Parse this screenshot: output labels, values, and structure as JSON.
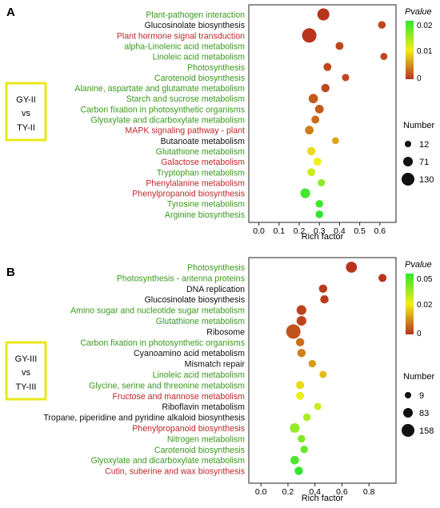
{
  "palette": {
    "green": "#3a9a1e",
    "red": "#c0282c",
    "black": "#111111",
    "box": "#e8e81a",
    "grad_low": "#b8341c",
    "grad_mid": "#f2ee1a",
    "grad_high": "#2ee62e"
  },
  "chart_data": [
    {
      "type": "scatter",
      "panel_label": "A",
      "group_label": [
        "GY-II",
        "vs",
        "TY-II"
      ],
      "xlabel": "Rich factor",
      "xlim": [
        -0.05,
        0.68
      ],
      "xticks": [
        "0.0",
        "0.1",
        "0.2",
        "0.3",
        "0.4",
        "0.5",
        "0.6"
      ],
      "color_legend": {
        "title": "Pvalue",
        "min": 0,
        "max": 0.02,
        "ticks": [
          "0.02",
          "0.01",
          "0"
        ]
      },
      "size_legend": {
        "title": "Number",
        "values": [
          "12",
          "71",
          "130"
        ]
      },
      "pathways": [
        {
          "name": "Plant-pathogen interaction",
          "label_color": "green",
          "x": 0.32,
          "n": 95,
          "p": 0.0
        },
        {
          "name": "Glucosinolate biosynthesis",
          "label_color": "black",
          "x": 0.61,
          "n": 30,
          "p": 0.001
        },
        {
          "name": "Plant hormone signal transduction",
          "label_color": "red",
          "x": 0.25,
          "n": 130,
          "p": 0.0
        },
        {
          "name": "alpha-Linolenic acid metabolism",
          "label_color": "green",
          "x": 0.4,
          "n": 35,
          "p": 0.001
        },
        {
          "name": "Linoleic acid metabolism",
          "label_color": "green",
          "x": 0.62,
          "n": 22,
          "p": 0.001
        },
        {
          "name": "Photosynthesis",
          "label_color": "green",
          "x": 0.34,
          "n": 35,
          "p": 0.001
        },
        {
          "name": "Carotenoid biosynthesis",
          "label_color": "green",
          "x": 0.43,
          "n": 25,
          "p": 0.001
        },
        {
          "name": "Alanine, aspartate and glutamate metabolism",
          "label_color": "green",
          "x": 0.33,
          "n": 40,
          "p": 0.001
        },
        {
          "name": "Starch and sucrose metabolism",
          "label_color": "green",
          "x": 0.27,
          "n": 55,
          "p": 0.002
        },
        {
          "name": "Carbon fixation in photosynthetic organisms",
          "label_color": "green",
          "x": 0.3,
          "n": 45,
          "p": 0.002
        },
        {
          "name": "Glyoxylate and dicarboxylate metabolism",
          "label_color": "green",
          "x": 0.28,
          "n": 35,
          "p": 0.003
        },
        {
          "name": "MAPK signaling pathway - plant",
          "label_color": "red",
          "x": 0.25,
          "n": 45,
          "p": 0.004
        },
        {
          "name": "Butanoate metabolism",
          "label_color": "black",
          "x": 0.38,
          "n": 20,
          "p": 0.006
        },
        {
          "name": "Glutathione metabolism",
          "label_color": "green",
          "x": 0.26,
          "n": 40,
          "p": 0.009
        },
        {
          "name": "Galactose metabolism",
          "label_color": "red",
          "x": 0.29,
          "n": 35,
          "p": 0.01
        },
        {
          "name": "Tryptophan metabolism",
          "label_color": "green",
          "x": 0.26,
          "n": 35,
          "p": 0.012
        },
        {
          "name": "Phenylalanine metabolism",
          "label_color": "red",
          "x": 0.31,
          "n": 25,
          "p": 0.015
        },
        {
          "name": "Phenylpropanoid biosynthesis",
          "label_color": "red",
          "x": 0.23,
          "n": 60,
          "p": 0.019
        },
        {
          "name": "Tyrosine metabolism",
          "label_color": "green",
          "x": 0.3,
          "n": 30,
          "p": 0.019
        },
        {
          "name": "Arginine biosynthesis",
          "label_color": "green",
          "x": 0.3,
          "n": 30,
          "p": 0.02
        }
      ]
    },
    {
      "type": "scatter",
      "panel_label": "B",
      "group_label": [
        "GY-III",
        "vs",
        "TY-III"
      ],
      "xlabel": "Rich factor",
      "xlim": [
        -0.09,
        1.0
      ],
      "xticks": [
        "0.0",
        "0.2",
        "0.4",
        "0.6",
        "0.8"
      ],
      "color_legend": {
        "title": "Pvalue",
        "min": 0,
        "max": 0.05,
        "ticks": [
          "0.05",
          "0.02",
          "0"
        ]
      },
      "size_legend": {
        "title": "Number",
        "values": [
          "9",
          "83",
          "158"
        ]
      },
      "pathways": [
        {
          "name": "Photosynthesis",
          "label_color": "green",
          "x": 0.67,
          "n": 95,
          "p": 0.0
        },
        {
          "name": "Photosynthesis - antenna proteins",
          "label_color": "green",
          "x": 0.9,
          "n": 40,
          "p": 0.0
        },
        {
          "name": "DNA replication",
          "label_color": "black",
          "x": 0.46,
          "n": 45,
          "p": 0.001
        },
        {
          "name": "Glucosinolate biosynthesis",
          "label_color": "black",
          "x": 0.47,
          "n": 45,
          "p": 0.001
        },
        {
          "name": "Amino sugar and nucleotide sugar metabolism",
          "label_color": "green",
          "x": 0.3,
          "n": 70,
          "p": 0.002
        },
        {
          "name": "Glutathione metabolism",
          "label_color": "green",
          "x": 0.3,
          "n": 70,
          "p": 0.002
        },
        {
          "name": "Ribosome",
          "label_color": "black",
          "x": 0.24,
          "n": 158,
          "p": 0.004
        },
        {
          "name": "Carbon fixation in photosynthetic organisms",
          "label_color": "green",
          "x": 0.29,
          "n": 45,
          "p": 0.008
        },
        {
          "name": "Cyanoamino acid metabolism",
          "label_color": "black",
          "x": 0.3,
          "n": 45,
          "p": 0.01
        },
        {
          "name": "Mismatch repair",
          "label_color": "black",
          "x": 0.38,
          "n": 30,
          "p": 0.014
        },
        {
          "name": "Linoleic acid metabolism",
          "label_color": "green",
          "x": 0.46,
          "n": 25,
          "p": 0.018
        },
        {
          "name": "Glycine, serine and threonine metabolism",
          "label_color": "green",
          "x": 0.29,
          "n": 40,
          "p": 0.022
        },
        {
          "name": "Fructose and mannose metabolism",
          "label_color": "red",
          "x": 0.29,
          "n": 40,
          "p": 0.026
        },
        {
          "name": "Riboflavin metabolism",
          "label_color": "black",
          "x": 0.42,
          "n": 25,
          "p": 0.03
        },
        {
          "name": "Tropane, piperidine and pyridine alkaloid biosynthesis",
          "label_color": "black",
          "x": 0.34,
          "n": 30,
          "p": 0.034
        },
        {
          "name": "Phenylpropanoid biosynthesis",
          "label_color": "red",
          "x": 0.25,
          "n": 70,
          "p": 0.037
        },
        {
          "name": "Nitrogen metabolism",
          "label_color": "green",
          "x": 0.3,
          "n": 30,
          "p": 0.04
        },
        {
          "name": "Carotenoid biosynthesis",
          "label_color": "green",
          "x": 0.32,
          "n": 30,
          "p": 0.043
        },
        {
          "name": "Glyoxylate and dicarboxylate metabolism",
          "label_color": "green",
          "x": 0.25,
          "n": 50,
          "p": 0.046
        },
        {
          "name": "Cutin, suberine and wax biosynthesis",
          "label_color": "red",
          "x": 0.28,
          "n": 45,
          "p": 0.05
        }
      ]
    }
  ]
}
